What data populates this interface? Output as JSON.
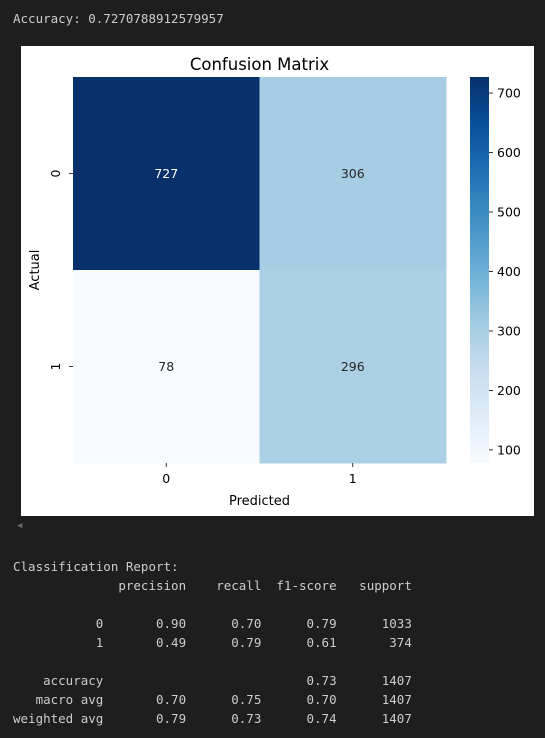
{
  "accuracy_line": "Accuracy: 0.7270788912579957",
  "chart_data": {
    "type": "heatmap",
    "title": "Confusion Matrix",
    "xlabel": "Predicted",
    "ylabel": "Actual",
    "x_categories": [
      "0",
      "1"
    ],
    "y_categories": [
      "0",
      "1"
    ],
    "values": [
      [
        727,
        306
      ],
      [
        78,
        296
      ]
    ],
    "colormap": "Blues",
    "colorbar": {
      "range": [
        78,
        727
      ],
      "ticks": [
        100,
        200,
        300,
        400,
        500,
        600,
        700
      ]
    }
  },
  "report": {
    "heading": "Classification Report:",
    "columns": [
      "precision",
      "recall",
      "f1-score",
      "support"
    ],
    "rows": [
      {
        "label": "0",
        "values": [
          "0.90",
          "0.70",
          "0.79",
          "1033"
        ]
      },
      {
        "label": "1",
        "values": [
          "0.49",
          "0.79",
          "0.61",
          "374"
        ]
      },
      {
        "label": "accuracy",
        "values": [
          "",
          "",
          "0.73",
          "1407"
        ]
      },
      {
        "label": "macro avg",
        "values": [
          "0.70",
          "0.75",
          "0.70",
          "1407"
        ]
      },
      {
        "label": "weighted avg",
        "values": [
          "0.79",
          "0.73",
          "0.74",
          "1407"
        ]
      }
    ]
  },
  "colors": {
    "background": "#1e1e1e",
    "text": "#cccccc",
    "figure_bg": "#ffffff"
  }
}
